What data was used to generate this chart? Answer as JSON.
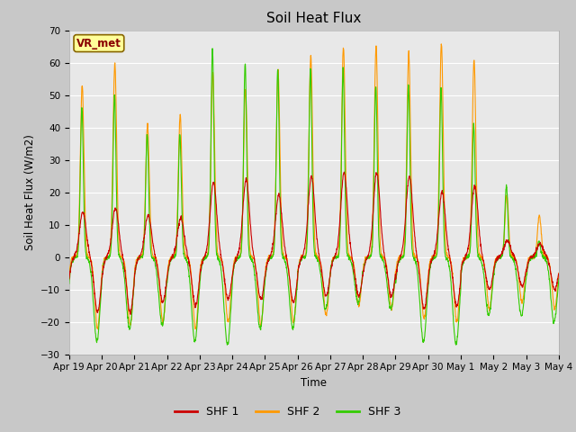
{
  "title": "Soil Heat Flux",
  "ylabel": "Soil Heat Flux (W/m2)",
  "xlabel": "Time",
  "ylim": [
    -30,
    70
  ],
  "yticks": [
    -30,
    -20,
    -10,
    0,
    10,
    20,
    30,
    40,
    50,
    60,
    70
  ],
  "fig_facecolor": "#c8c8c8",
  "plot_bg_color": "#e8e8e8",
  "colors": {
    "shf1": "#cc0000",
    "shf2": "#ff9900",
    "shf3": "#33cc00"
  },
  "legend_labels": [
    "SHF 1",
    "SHF 2",
    "SHF 3"
  ],
  "vr_met_text": "VR_met",
  "vr_met_box_color": "#ffff99",
  "vr_met_text_color": "#880000",
  "x_tick_labels": [
    "Apr 19",
    "Apr 20",
    "Apr 21",
    "Apr 22",
    "Apr 23",
    "Apr 24",
    "Apr 25",
    "Apr 26",
    "Apr 27",
    "Apr 28",
    "Apr 29",
    "Apr 30",
    "May 1",
    "May 2",
    "May 3",
    "May 4"
  ],
  "n_days": 15,
  "ppd": 144
}
